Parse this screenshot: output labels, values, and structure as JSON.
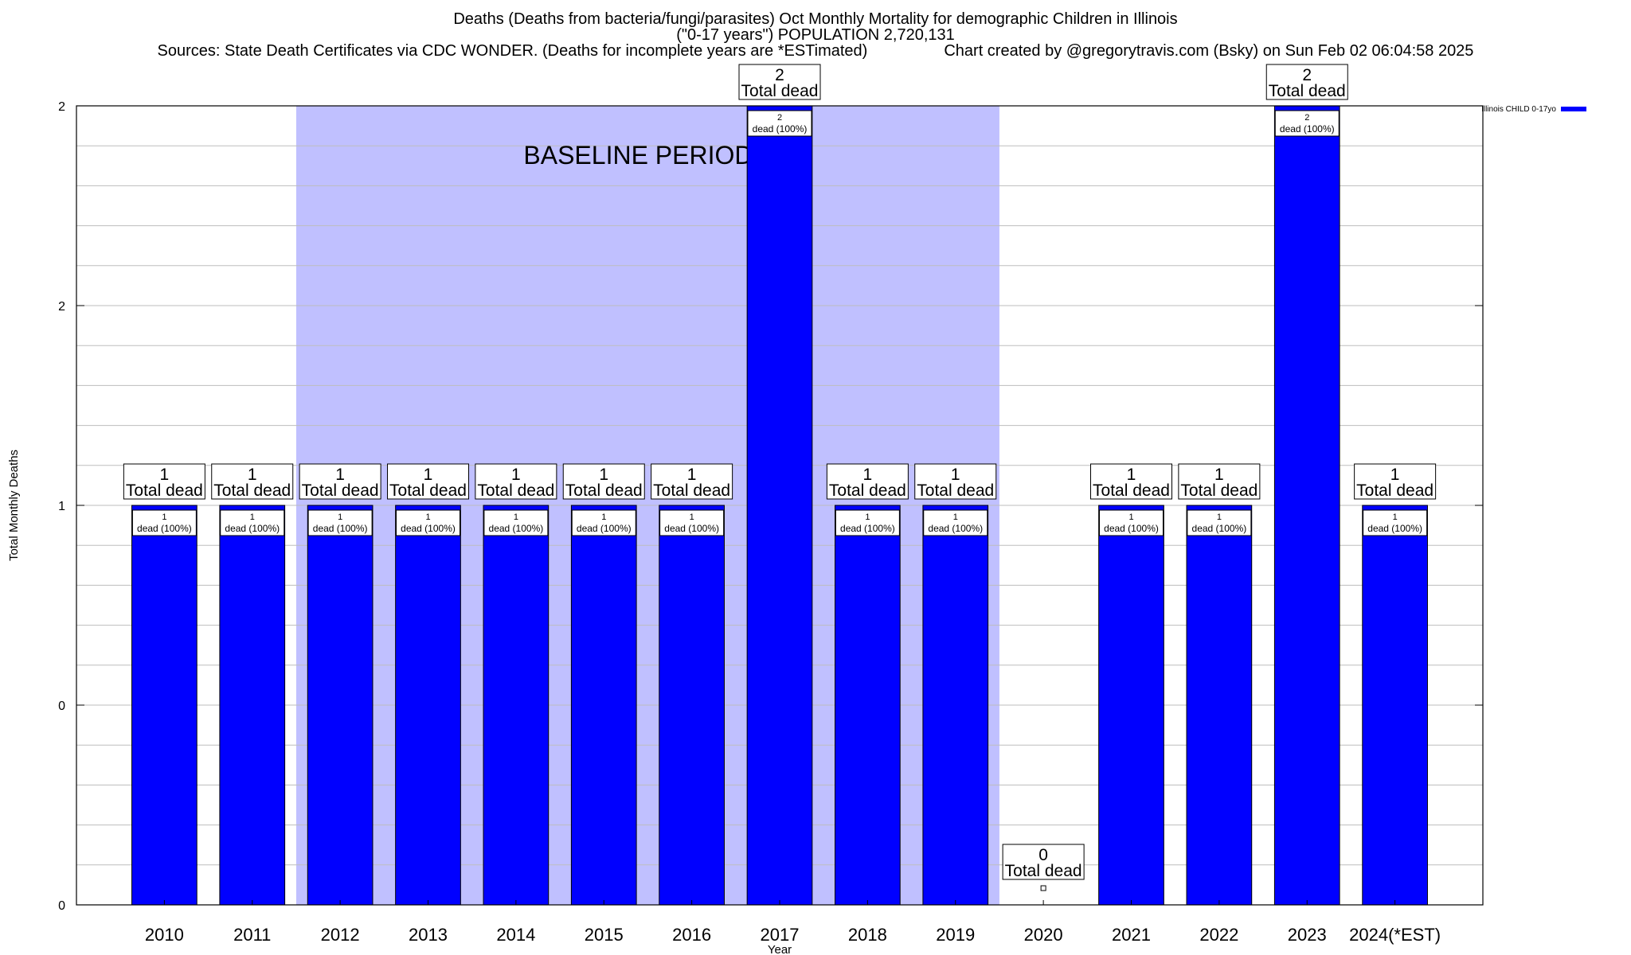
{
  "chart_data": {
    "type": "bar",
    "title_line1": "Deaths (Deaths from bacteria/fungi/parasites) Oct Monthly Mortality for demographic Children in Illinois",
    "title_line2": "(\"0-17 years\") POPULATION 2,720,131",
    "sources": "Sources: State Death Certificates via CDC WONDER. (Deaths for incomplete years are *ESTimated)",
    "credit": "Chart created by @gregorytravis.com (Bsky) on Sun Feb 02 06:04:58 2025",
    "xlabel": "Year",
    "ylabel": "Total Monthly Deaths",
    "ylim": [
      0,
      2
    ],
    "y_tick_labels": [
      "0",
      "0",
      "1",
      "2",
      "2"
    ],
    "grid": true,
    "legend_position": "top-right",
    "categories": [
      "2010",
      "2011",
      "2012",
      "2013",
      "2014",
      "2015",
      "2016",
      "2017",
      "2018",
      "2019",
      "2020",
      "2021",
      "2022",
      "2023",
      "2024(*EST)"
    ],
    "series": [
      {
        "name": "Illinois CHILD 0-17yo",
        "color": "#0000ff",
        "values": [
          1,
          1,
          1,
          1,
          1,
          1,
          1,
          2,
          1,
          1,
          0,
          1,
          1,
          2,
          1
        ]
      }
    ],
    "total_label_word": "Total dead",
    "inner_label_suffix": "dead (100%)",
    "baseline": {
      "label": "BASELINE PERIOD",
      "from": "2012",
      "to": "2019",
      "color": "#c0c0ff"
    }
  }
}
